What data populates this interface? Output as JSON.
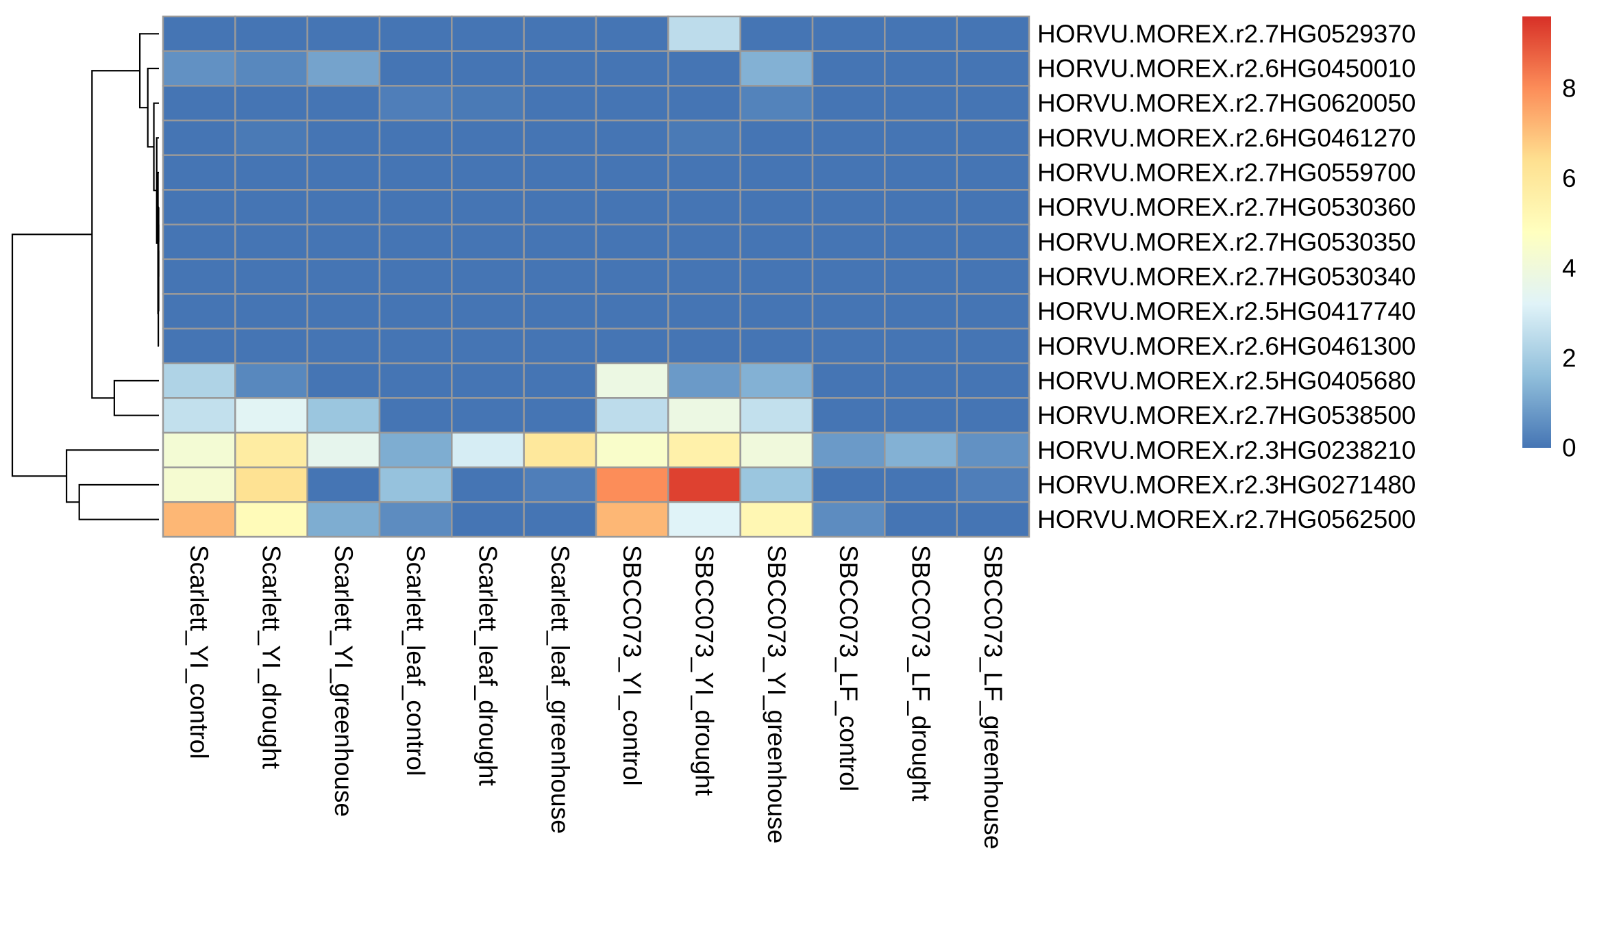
{
  "chart_data": {
    "type": "heatmap",
    "title": "",
    "xlabel": "",
    "ylabel": "",
    "rows": [
      "HORVU.MOREX.r2.7HG0529370",
      "HORVU.MOREX.r2.6HG0450010",
      "HORVU.MOREX.r2.7HG0620050",
      "HORVU.MOREX.r2.6HG0461270",
      "HORVU.MOREX.r2.7HG0559700",
      "HORVU.MOREX.r2.7HG0530360",
      "HORVU.MOREX.r2.7HG0530350",
      "HORVU.MOREX.r2.7HG0530340",
      "HORVU.MOREX.r2.5HG0417740",
      "HORVU.MOREX.r2.6HG0461300",
      "HORVU.MOREX.r2.5HG0405680",
      "HORVU.MOREX.r2.7HG0538500",
      "HORVU.MOREX.r2.3HG0238210",
      "HORVU.MOREX.r2.3HG0271480",
      "HORVU.MOREX.r2.7HG0562500"
    ],
    "columns": [
      "Scarlett_YI_control",
      "Scarlett_YI_drought",
      "Scarlett_YI_greenhouse",
      "Scarlett_leaf_control",
      "Scarlett_leaf_drought",
      "Scarlett_leaf_greenhouse",
      "SBCC073_YI_control",
      "SBCC073_YI_drought",
      "SBCC073_YI_greenhouse",
      "SBCC073_LF_control",
      "SBCC073_LF_drought",
      "SBCC073_LF_greenhouse"
    ],
    "values": [
      [
        0.0,
        0.0,
        0.0,
        0.0,
        0.0,
        0.0,
        0.0,
        2.5,
        0.0,
        0.0,
        0.0,
        0.0
      ],
      [
        0.6,
        0.4,
        1.0,
        0.0,
        0.0,
        0.0,
        0.0,
        0.0,
        1.3,
        0.0,
        0.0,
        0.0
      ],
      [
        0.0,
        0.0,
        0.0,
        0.2,
        0.1,
        0.0,
        0.0,
        0.0,
        0.3,
        0.0,
        0.0,
        0.0
      ],
      [
        0.0,
        0.1,
        0.0,
        0.0,
        0.0,
        0.0,
        0.0,
        0.1,
        0.0,
        0.0,
        0.0,
        0.0
      ],
      [
        0.0,
        0.0,
        0.0,
        0.0,
        0.0,
        0.0,
        0.0,
        0.0,
        0.0,
        0.0,
        0.0,
        0.0
      ],
      [
        0.0,
        0.0,
        0.0,
        0.0,
        0.0,
        0.0,
        0.0,
        0.0,
        0.0,
        0.0,
        0.0,
        0.0
      ],
      [
        0.0,
        0.0,
        0.0,
        0.0,
        0.0,
        0.0,
        0.0,
        0.0,
        0.0,
        0.0,
        0.0,
        0.0
      ],
      [
        0.0,
        0.0,
        0.0,
        0.0,
        0.0,
        0.0,
        0.0,
        0.0,
        0.0,
        0.0,
        0.0,
        0.0
      ],
      [
        0.0,
        0.0,
        0.0,
        0.0,
        0.0,
        0.0,
        0.0,
        0.0,
        0.0,
        0.0,
        0.0,
        0.0
      ],
      [
        0.0,
        0.0,
        0.0,
        0.0,
        0.0,
        0.0,
        0.0,
        0.0,
        0.0,
        0.0,
        0.0,
        0.0
      ],
      [
        2.2,
        0.4,
        0.0,
        0.0,
        0.0,
        0.0,
        3.8,
        0.8,
        1.3,
        0.0,
        0.0,
        0.0
      ],
      [
        2.6,
        3.3,
        1.8,
        0.0,
        0.0,
        0.0,
        2.5,
        3.8,
        2.6,
        0.0,
        0.0,
        0.0
      ],
      [
        4.2,
        5.8,
        3.5,
        1.2,
        3.0,
        6.0,
        4.5,
        5.5,
        4.0,
        0.8,
        1.3,
        0.6
      ],
      [
        4.3,
        6.3,
        0.0,
        1.7,
        0.0,
        0.2,
        8.0,
        9.3,
        1.8,
        0.0,
        0.0,
        0.2
      ],
      [
        7.2,
        5.0,
        1.2,
        0.5,
        0.0,
        0.0,
        7.2,
        3.2,
        5.2,
        0.5,
        0.0,
        0.0
      ]
    ],
    "zlim": [
      0,
      9.6
    ],
    "legend": {
      "position": "right",
      "ticks": [
        "0",
        "2",
        "4",
        "6",
        "8"
      ],
      "tick_values": [
        0,
        2,
        4,
        6,
        8
      ]
    },
    "colors": {
      "scale": [
        "#4575b4",
        "#91bfdb",
        "#e0f3f8",
        "#ffffbf",
        "#fee090",
        "#fc8d59",
        "#d73027"
      ],
      "cell_border": "#999999",
      "dendrogram": "#000000"
    },
    "dendrogram": {
      "side": "left",
      "merges": [
        {
          "a": 5,
          "b": 6,
          "height": 0.01
        },
        {
          "a": "m0",
          "b": 7,
          "height": 0.01
        },
        {
          "a": "m1",
          "b": 8,
          "height": 0.01
        },
        {
          "a": "m2",
          "b": 9,
          "height": 0.02
        },
        {
          "a": 4,
          "b": "m3",
          "height": 0.03
        },
        {
          "a": 3,
          "b": "m4",
          "height": 0.07
        },
        {
          "a": 2,
          "b": "m5",
          "height": 0.16
        },
        {
          "a": 1,
          "b": "m6",
          "height": 0.35
        },
        {
          "a": 0,
          "b": "m7",
          "height": 0.6
        },
        {
          "a": 10,
          "b": 11,
          "height": 1.4
        },
        {
          "a": "m8",
          "b": "m9",
          "height": 2.1
        },
        {
          "a": 13,
          "b": 14,
          "height": 2.5
        },
        {
          "a": 12,
          "b": "m11",
          "height": 2.9
        },
        {
          "a": "m10",
          "b": "m12",
          "height": 4.6
        }
      ]
    }
  }
}
